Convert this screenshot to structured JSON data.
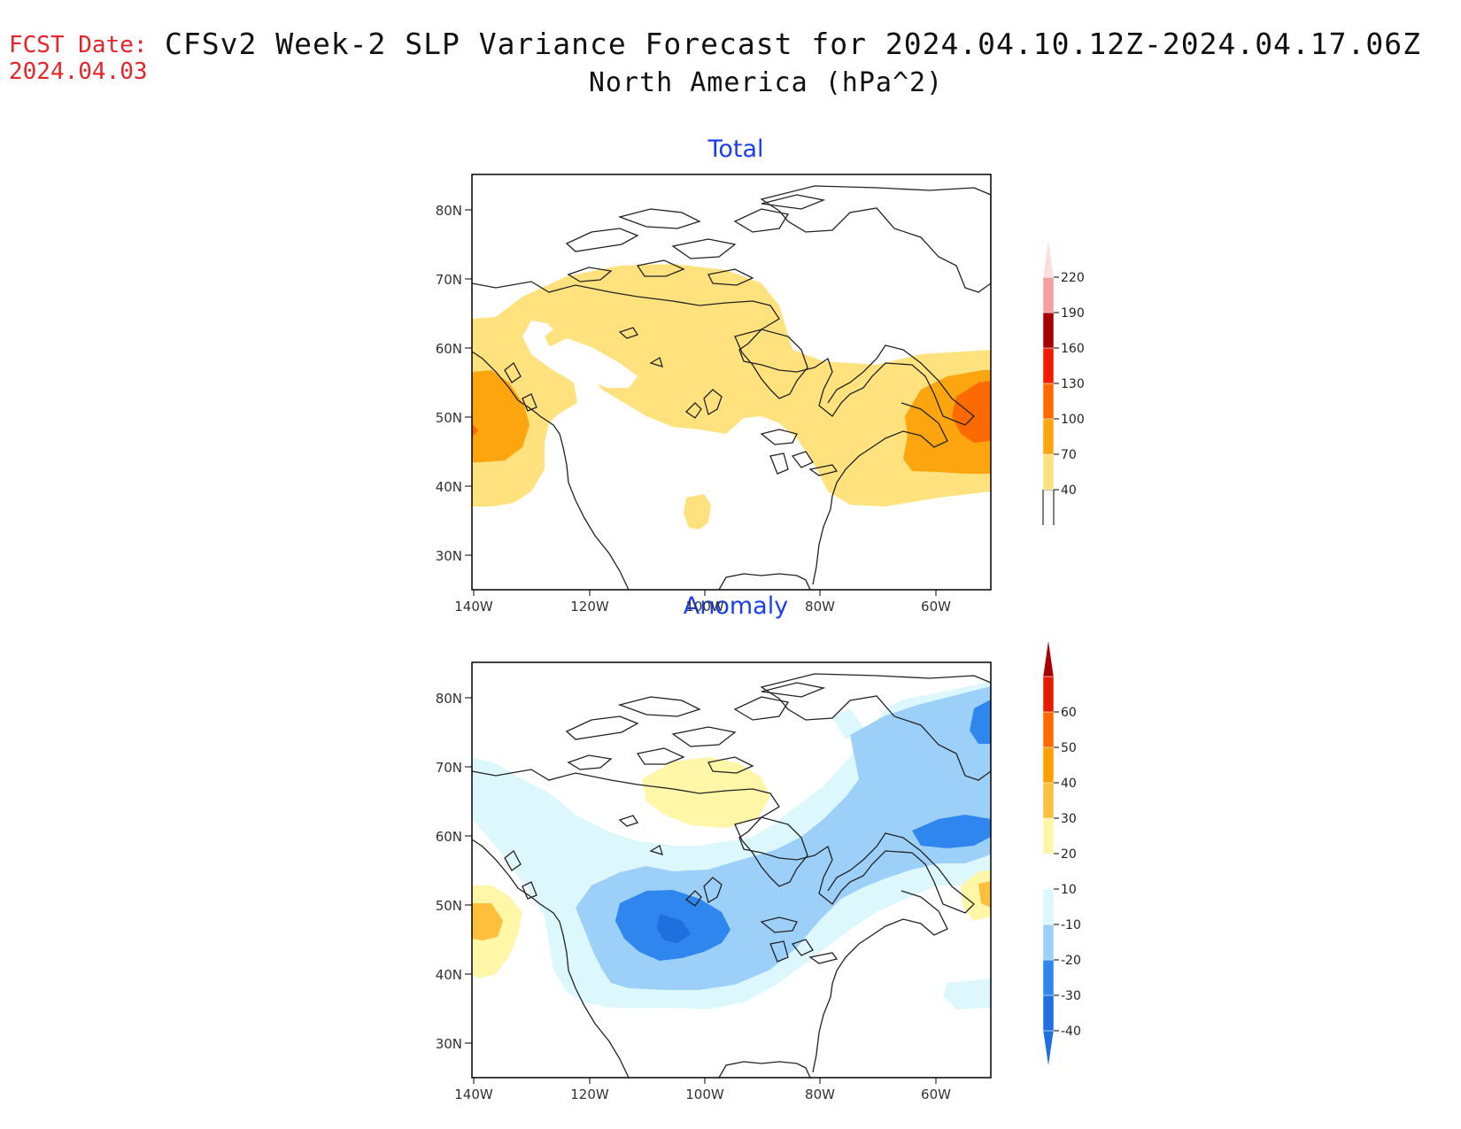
{
  "header": {
    "fcst_label": "FCST Date:",
    "fcst_date": "2024.04.03",
    "title": "CFSv2 Week-2 SLP Variance Forecast for 2024.04.10.12Z-2024.04.17.06Z",
    "subtitle": "North America (hPa^2)"
  },
  "axes": {
    "lat_ticks": [
      "80N",
      "70N",
      "60N",
      "50N",
      "40N",
      "30N"
    ],
    "lon_ticks": [
      "140W",
      "120W",
      "100W",
      "80W",
      "60W"
    ]
  },
  "panels": [
    {
      "title": "Total",
      "colorbar": {
        "levels": [
          "40",
          "70",
          "100",
          "130",
          "160",
          "190",
          "220"
        ],
        "colors": [
          "#ffe27d",
          "#fda50f",
          "#ff6a00",
          "#f21b00",
          "#a80000",
          "#f2a0a0",
          "#ffdede"
        ],
        "low_color": "#ffffff"
      }
    },
    {
      "title": "Anomaly",
      "colorbar": {
        "levels": [
          "-40",
          "-30",
          "-20",
          "-10",
          "10",
          "20",
          "30",
          "40",
          "50",
          "60"
        ],
        "colors": [
          "#1f6fe0",
          "#2f86ee",
          "#9cd0f9",
          "#ddf8fd",
          "#ffffff",
          "#fff6a8",
          "#fdbf3c",
          "#fba000",
          "#ff6a00",
          "#e51c00",
          "#a80000"
        ]
      }
    }
  ]
}
